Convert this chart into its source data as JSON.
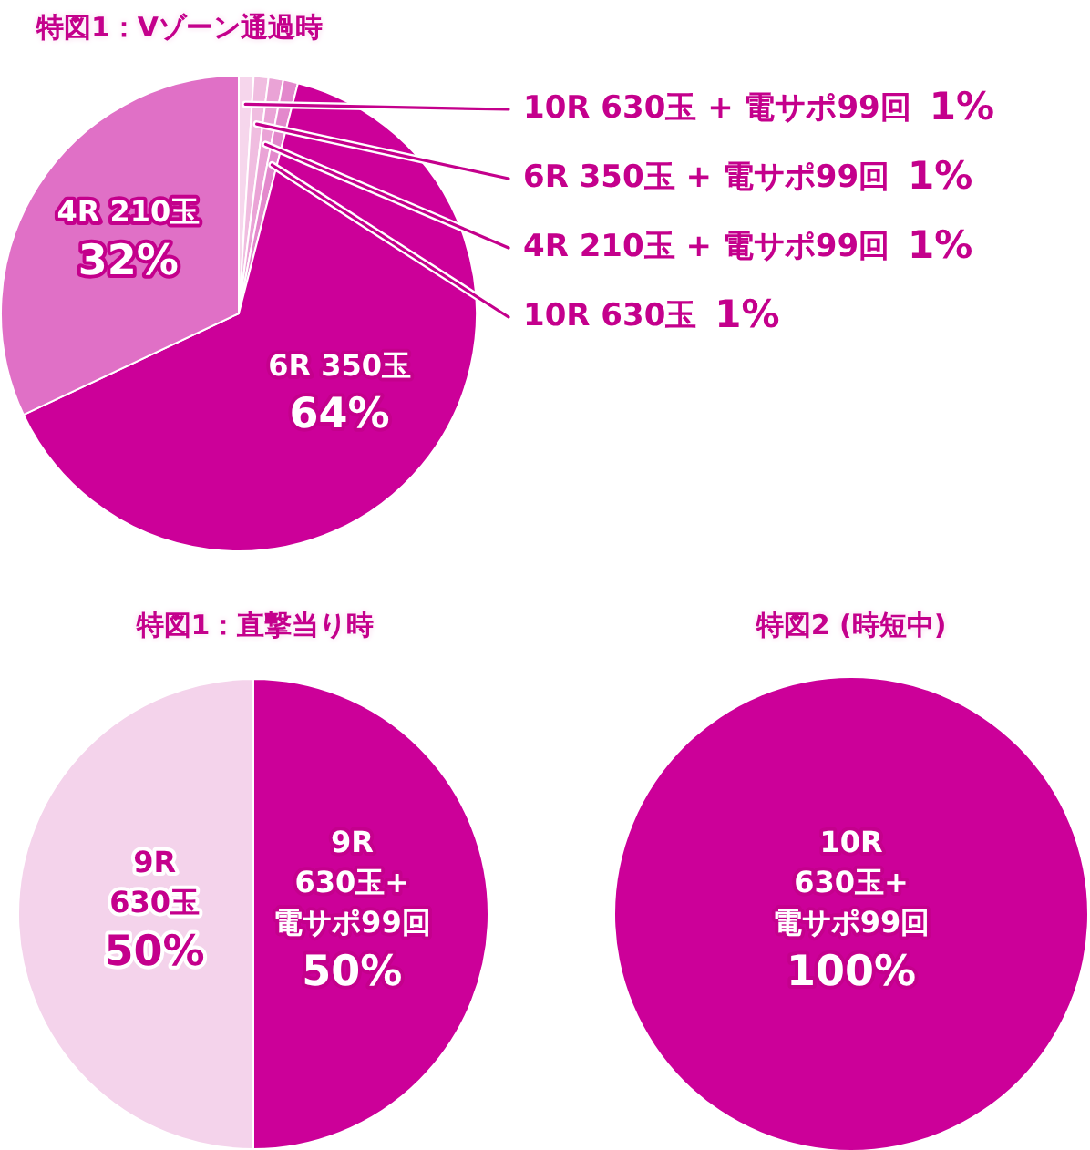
{
  "chart_data": [
    {
      "type": "pie",
      "title": "特図1：Vゾーン通過時",
      "categories": [
        "10R 630玉 + 電サポ99回",
        "6R 350玉 + 電サポ99回",
        "4R 210玉 + 電サポ99回",
        "10R 630玉",
        "6R 350玉",
        "4R 210玉"
      ],
      "values": [
        1,
        1,
        1,
        1,
        64,
        32
      ],
      "colors": [
        "#f6d6ec",
        "#f0bde0",
        "#eaa3d6",
        "#e388cc",
        "#cc0099",
        "#e070c6"
      ],
      "value_labels": [
        "1%",
        "1%",
        "1%",
        "1%",
        "64%",
        "32%"
      ]
    },
    {
      "type": "pie",
      "title": "特図1：直撃当り時",
      "categories": [
        "9R\n630玉+\n電サポ99回",
        "9R\n630玉"
      ],
      "values": [
        50,
        50
      ],
      "colors": [
        "#cc0099",
        "#f4d3eb"
      ],
      "value_labels": [
        "50%",
        "50%"
      ]
    },
    {
      "type": "pie",
      "title": "特図2 (時短中)",
      "categories": [
        "10R\n630玉+\n電サポ99回"
      ],
      "values": [
        100
      ],
      "colors": [
        "#cc0099"
      ],
      "value_labels": [
        "100%"
      ]
    }
  ]
}
